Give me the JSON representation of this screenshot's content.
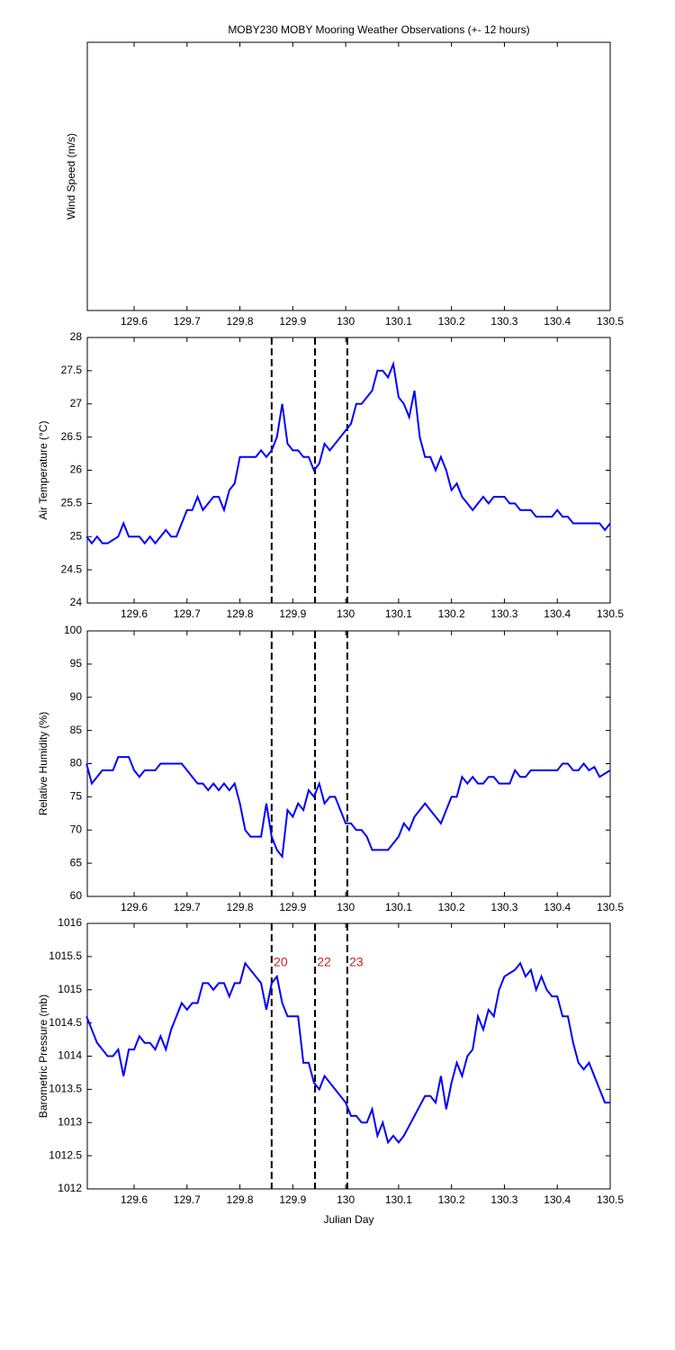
{
  "chart_data": [
    {
      "type": "line",
      "title": "MOBY230 MOBY Mooring Weather Observations (+- 12 hours)",
      "ylabel": "Wind Speed (m/s)",
      "xlim": [
        129.5115,
        130.5
      ],
      "xticks": [
        129.6,
        129.7,
        129.8,
        129.9,
        130,
        130.1,
        130.2,
        130.3,
        130.4,
        130.5
      ]
    },
    {
      "type": "line",
      "ylabel": "Air Temperature (°C)",
      "xlim": [
        129.5115,
        130.5
      ],
      "xticks": [
        129.6,
        129.7,
        129.8,
        129.9,
        130,
        130.1,
        130.2,
        130.3,
        130.4,
        130.5
      ],
      "ylim": [
        24,
        28
      ],
      "yticks": [
        24,
        24.5,
        25,
        25.5,
        26,
        26.5,
        27,
        27.5,
        28
      ],
      "vlines": [
        129.86,
        129.942,
        130.003
      ],
      "x": [
        129.51,
        129.52,
        129.53,
        129.54,
        129.55,
        129.57,
        129.58,
        129.59,
        129.61,
        129.62,
        129.63,
        129.64,
        129.66,
        129.67,
        129.68,
        129.7,
        129.71,
        129.72,
        129.73,
        129.75,
        129.76,
        129.77,
        129.78,
        129.79,
        129.8,
        129.83,
        129.84,
        129.85,
        129.86,
        129.87,
        129.88,
        129.89,
        129.9,
        129.91,
        129.92,
        129.93,
        129.94,
        129.95,
        129.96,
        129.97,
        129.98,
        129.99,
        130.0,
        130.01,
        130.02,
        130.03,
        130.05,
        130.06,
        130.07,
        130.08,
        130.09,
        130.1,
        130.11,
        130.12,
        130.13,
        130.14,
        130.15,
        130.16,
        130.17,
        130.18,
        130.19,
        130.2,
        130.21,
        130.22,
        130.23,
        130.24,
        130.26,
        130.27,
        130.28,
        130.3,
        130.31,
        130.32,
        130.33,
        130.35,
        130.36,
        130.39,
        130.4,
        130.41,
        130.42,
        130.43,
        130.46,
        130.47,
        130.48,
        130.49,
        130.5
      ],
      "series": [
        {
          "color": "#0000ff",
          "values": [
            25.0,
            24.9,
            25.0,
            24.9,
            24.9,
            25.0,
            25.2,
            25.0,
            25.0,
            24.9,
            25.0,
            24.9,
            25.1,
            25.0,
            25.0,
            25.4,
            25.4,
            25.6,
            25.4,
            25.6,
            25.6,
            25.4,
            25.7,
            25.8,
            26.2,
            26.2,
            26.3,
            26.2,
            26.3,
            26.5,
            27.0,
            26.4,
            26.3,
            26.3,
            26.2,
            26.2,
            26.0,
            26.1,
            26.4,
            26.3,
            26.4,
            26.5,
            26.6,
            26.7,
            27.0,
            27.0,
            27.2,
            27.5,
            27.5,
            27.4,
            27.6,
            27.1,
            27.0,
            26.8,
            27.2,
            26.5,
            26.2,
            26.2,
            26.0,
            26.2,
            26.0,
            25.7,
            25.8,
            25.6,
            25.5,
            25.4,
            25.6,
            25.5,
            25.6,
            25.6,
            25.5,
            25.5,
            25.4,
            25.4,
            25.3,
            25.3,
            25.4,
            25.3,
            25.3,
            25.2,
            25.2,
            25.2,
            25.2,
            25.1,
            25.2
          ]
        }
      ]
    },
    {
      "type": "line",
      "ylabel": "Relative Humidity (%)",
      "xlim": [
        129.5115,
        130.5
      ],
      "xticks": [
        129.6,
        129.7,
        129.8,
        129.9,
        130,
        130.1,
        130.2,
        130.3,
        130.4,
        130.5
      ],
      "ylim": [
        60,
        100
      ],
      "yticks": [
        60,
        65,
        70,
        75,
        80,
        85,
        90,
        95,
        100
      ],
      "vlines": [
        129.86,
        129.942,
        130.003
      ],
      "x": [
        129.51,
        129.52,
        129.54,
        129.56,
        129.57,
        129.59,
        129.6,
        129.61,
        129.62,
        129.64,
        129.65,
        129.69,
        129.72,
        129.73,
        129.74,
        129.75,
        129.76,
        129.77,
        129.78,
        129.79,
        129.8,
        129.81,
        129.82,
        129.84,
        129.85,
        129.86,
        129.87,
        129.88,
        129.89,
        129.9,
        129.91,
        129.92,
        129.93,
        129.94,
        129.95,
        129.96,
        129.97,
        129.98,
        129.99,
        130.0,
        130.01,
        130.02,
        130.03,
        130.04,
        130.05,
        130.08,
        130.1,
        130.11,
        130.12,
        130.13,
        130.15,
        130.16,
        130.18,
        130.2,
        130.21,
        130.22,
        130.23,
        130.24,
        130.25,
        130.26,
        130.27,
        130.28,
        130.29,
        130.31,
        130.32,
        130.33,
        130.34,
        130.35,
        130.39,
        130.4,
        130.41,
        130.42,
        130.43,
        130.44,
        130.45,
        130.46,
        130.47,
        130.48,
        130.5
      ],
      "series": [
        {
          "color": "#0000ff",
          "values": [
            80,
            77,
            79,
            79,
            81,
            81,
            79,
            78,
            79,
            79,
            80,
            80,
            77,
            77,
            76,
            77,
            76,
            77,
            76,
            77,
            74,
            70,
            69,
            69,
            74,
            69,
            67,
            66,
            73,
            72,
            74,
            73,
            76,
            75,
            77,
            74,
            75,
            75,
            73,
            71,
            71,
            70,
            70,
            69,
            67,
            67,
            69,
            71,
            70,
            72,
            74,
            73,
            71,
            75,
            75,
            78,
            77,
            78,
            77,
            77,
            78,
            78,
            77,
            77,
            79,
            78,
            78,
            79,
            79,
            79,
            80,
            80,
            79,
            79,
            80,
            79,
            79.5,
            78,
            79
          ]
        }
      ]
    },
    {
      "type": "line",
      "ylabel": "Barometric Pressure (mb)",
      "xlabel": "Julian Day",
      "xlim": [
        129.5115,
        130.5
      ],
      "xticks": [
        129.6,
        129.7,
        129.8,
        129.9,
        130,
        130.1,
        130.2,
        130.3,
        130.4,
        130.5
      ],
      "ylim": [
        1012,
        1016
      ],
      "yticks": [
        1012,
        1012.5,
        1013,
        1013.5,
        1014,
        1014.5,
        1015,
        1015.5,
        1016
      ],
      "vlines": [
        129.86,
        129.942,
        130.003
      ],
      "annotations": [
        "20",
        "22",
        "23"
      ],
      "annotation_color": "#cc2222",
      "x": [
        129.51,
        129.52,
        129.53,
        129.55,
        129.56,
        129.57,
        129.58,
        129.59,
        129.6,
        129.61,
        129.62,
        129.63,
        129.64,
        129.65,
        129.66,
        129.67,
        129.69,
        129.7,
        129.71,
        129.72,
        129.73,
        129.74,
        129.75,
        129.76,
        129.77,
        129.78,
        129.79,
        129.8,
        129.81,
        129.82,
        129.83,
        129.84,
        129.85,
        129.86,
        129.87,
        129.88,
        129.89,
        129.91,
        129.92,
        129.93,
        129.94,
        129.95,
        129.96,
        129.97,
        129.98,
        129.99,
        130.0,
        130.01,
        130.02,
        130.03,
        130.04,
        130.05,
        130.06,
        130.07,
        130.08,
        130.09,
        130.1,
        130.11,
        130.13,
        130.15,
        130.16,
        130.17,
        130.18,
        130.19,
        130.2,
        130.21,
        130.22,
        130.23,
        130.24,
        130.25,
        130.26,
        130.27,
        130.28,
        130.29,
        130.3,
        130.32,
        130.33,
        130.34,
        130.35,
        130.36,
        130.37,
        130.38,
        130.39,
        130.4,
        130.41,
        130.42,
        130.43,
        130.44,
        130.45,
        130.46,
        130.47,
        130.49,
        130.5
      ],
      "series": [
        {
          "color": "#0000ff",
          "values": [
            1014.6,
            1014.4,
            1014.2,
            1014.0,
            1014.0,
            1014.1,
            1013.7,
            1014.1,
            1014.1,
            1014.3,
            1014.2,
            1014.2,
            1014.1,
            1014.3,
            1014.1,
            1014.4,
            1014.8,
            1014.7,
            1014.8,
            1014.8,
            1015.1,
            1015.1,
            1015.0,
            1015.1,
            1015.1,
            1014.9,
            1015.1,
            1015.1,
            1015.4,
            1015.3,
            1015.2,
            1015.1,
            1014.7,
            1015.1,
            1015.2,
            1014.8,
            1014.6,
            1014.6,
            1013.9,
            1013.9,
            1013.6,
            1013.5,
            1013.7,
            1013.6,
            1013.5,
            1013.4,
            1013.3,
            1013.1,
            1013.1,
            1013.0,
            1013.0,
            1013.2,
            1012.8,
            1013.0,
            1012.7,
            1012.8,
            1012.7,
            1012.8,
            1013.1,
            1013.4,
            1013.4,
            1013.3,
            1013.7,
            1013.2,
            1013.6,
            1013.9,
            1013.7,
            1014.0,
            1014.1,
            1014.6,
            1014.4,
            1014.7,
            1014.6,
            1015.0,
            1015.2,
            1015.3,
            1015.4,
            1015.2,
            1015.3,
            1015.0,
            1015.2,
            1015.0,
            1014.9,
            1014.9,
            1014.6,
            1014.6,
            1014.2,
            1013.9,
            1013.8,
            1013.9,
            1013.7,
            1013.3,
            1013.3
          ]
        }
      ]
    }
  ]
}
